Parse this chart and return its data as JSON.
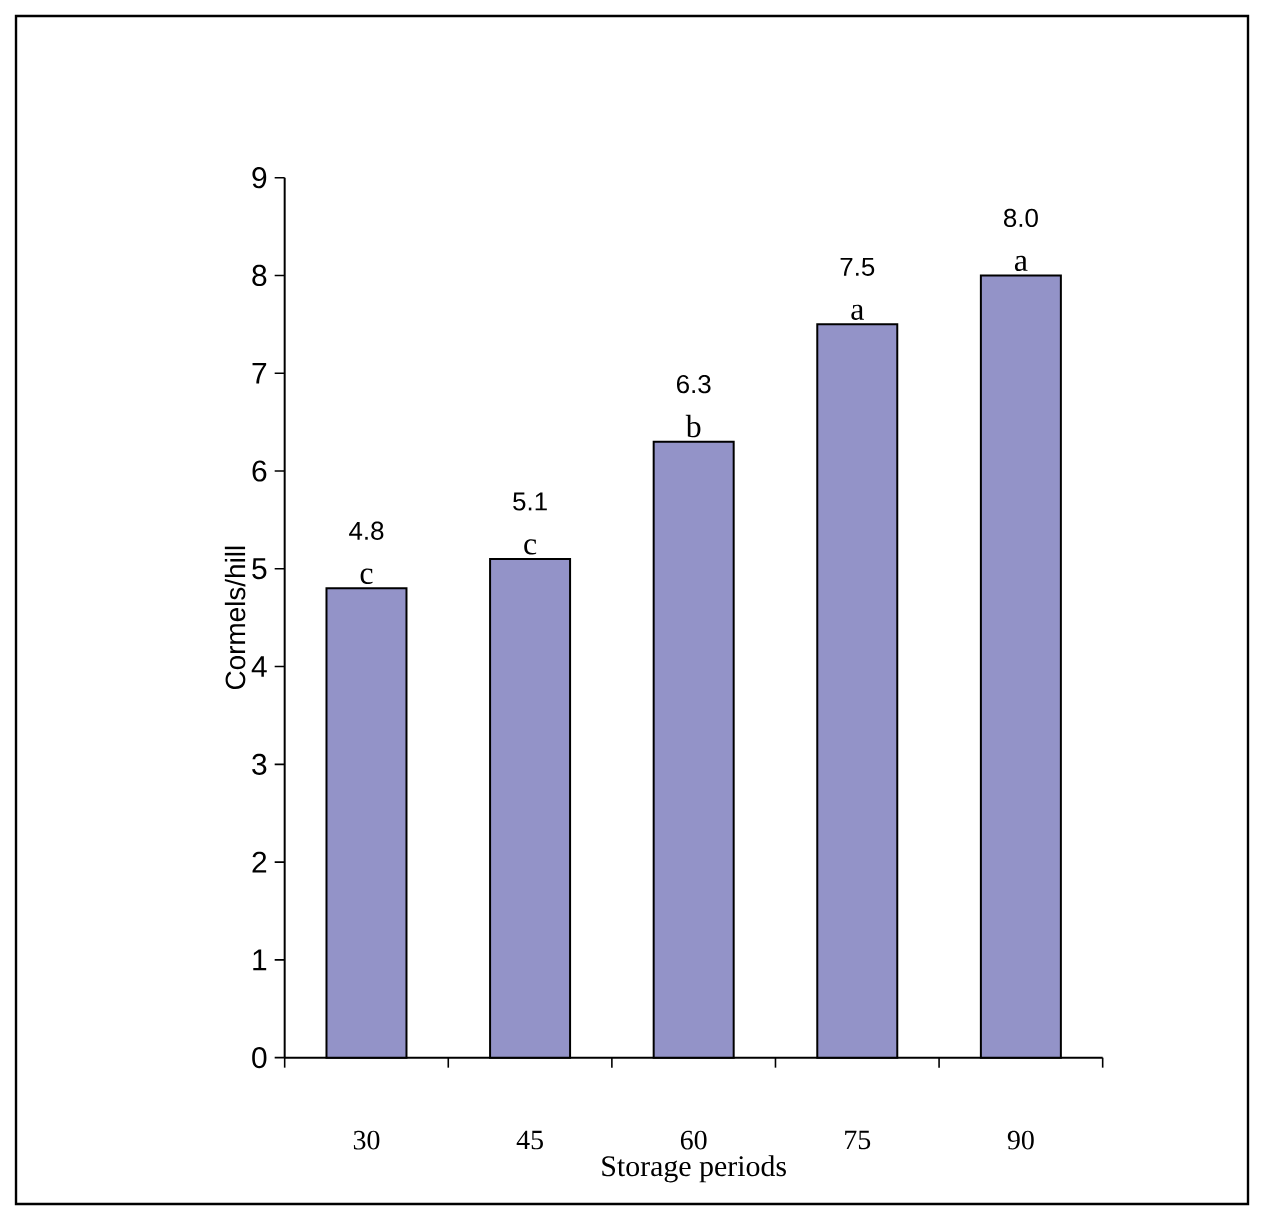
{
  "chart_data": {
    "type": "bar",
    "xlabel": "Storage periods",
    "ylabel": "Cormels/hill",
    "categories": [
      "30",
      "45",
      "60",
      "75",
      "90"
    ],
    "values": [
      4.8,
      5.1,
      6.3,
      7.5,
      8.0
    ],
    "color": "#9393c8",
    "ylim": [
      0,
      9
    ],
    "yticks": [
      0,
      1,
      2,
      3,
      4,
      5,
      6,
      7,
      8,
      9
    ],
    "value_labels": [
      "4.8",
      "5.1",
      "6.3",
      "7.5",
      "8.0"
    ],
    "grid": false,
    "annotations": [
      {
        "text": "c",
        "x": "30",
        "y": 4.8
      },
      {
        "text": "c",
        "x": "45",
        "y": 5.1
      },
      {
        "text": "b",
        "x": "60",
        "y": 6.3
      },
      {
        "text": "a",
        "x": "75",
        "y": 7.5
      },
      {
        "text": "a",
        "x": "90",
        "y": 8.0
      }
    ]
  }
}
